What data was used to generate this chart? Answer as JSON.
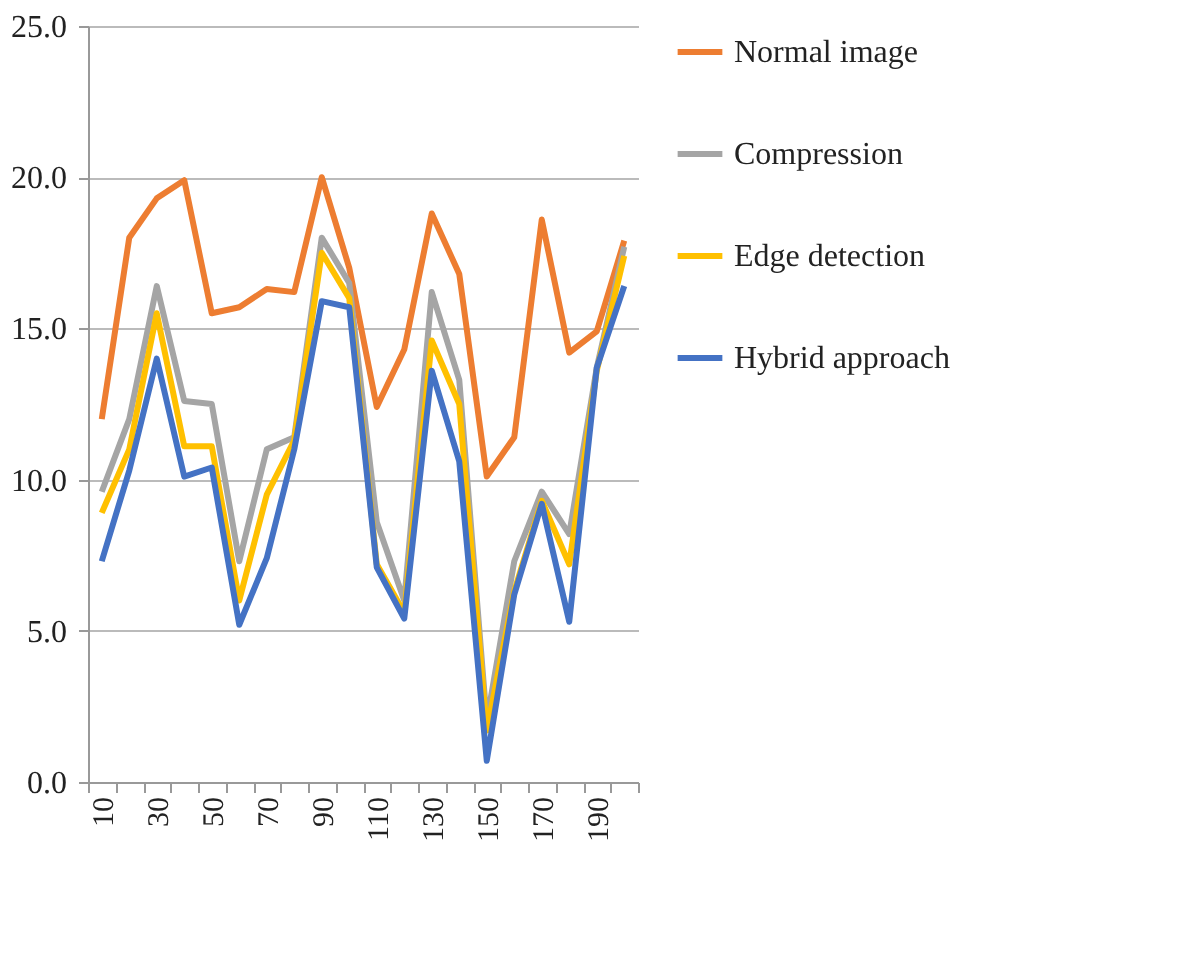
{
  "chart_data": {
    "type": "line",
    "categories": [
      "10",
      null,
      "30",
      null,
      "50",
      null,
      "70",
      null,
      "90",
      null,
      "110",
      null,
      "130",
      null,
      "150",
      null,
      "170",
      null,
      "190",
      null
    ],
    "series": [
      {
        "name": "Normal image",
        "color": "#ed7d31",
        "values": [
          12.0,
          18.0,
          19.3,
          19.9,
          15.5,
          15.7,
          16.3,
          16.2,
          20.0,
          17.0,
          12.4,
          14.3,
          18.8,
          16.8,
          10.1,
          11.4,
          18.6,
          14.2,
          14.9,
          17.9
        ]
      },
      {
        "name": "Compression",
        "color": "#a5a5a5",
        "values": [
          9.6,
          12.0,
          16.4,
          12.6,
          12.5,
          7.3,
          11.0,
          11.4,
          18.0,
          16.5,
          8.6,
          6.0,
          16.2,
          13.3,
          2.0,
          7.3,
          9.6,
          8.2,
          13.7,
          17.7
        ]
      },
      {
        "name": "Edge detection",
        "color": "#ffc000",
        "values": [
          8.9,
          11.0,
          15.5,
          11.1,
          11.1,
          6.0,
          9.5,
          11.3,
          17.5,
          16.0,
          7.2,
          5.6,
          14.6,
          12.5,
          1.7,
          6.3,
          9.3,
          7.2,
          13.6,
          17.4
        ]
      },
      {
        "name": "Hybrid approach",
        "color": "#4472c4",
        "values": [
          7.3,
          10.3,
          14.0,
          10.1,
          10.4,
          5.2,
          7.4,
          11.0,
          15.9,
          15.7,
          7.1,
          5.4,
          13.6,
          10.6,
          0.7,
          6.2,
          9.2,
          5.3,
          13.7,
          16.4
        ]
      }
    ],
    "ylim": [
      0,
      25
    ],
    "yticks": [
      {
        "value": 0,
        "label": "0.0"
      },
      {
        "value": 5,
        "label": "5.0"
      },
      {
        "value": 10,
        "label": "10.0"
      },
      {
        "value": 15,
        "label": "15.0"
      },
      {
        "value": 20,
        "label": "20.0"
      },
      {
        "value": 25,
        "label": "25.0"
      }
    ],
    "grid": "y",
    "legend": "right",
    "marker": "none",
    "line_style": "solid"
  }
}
